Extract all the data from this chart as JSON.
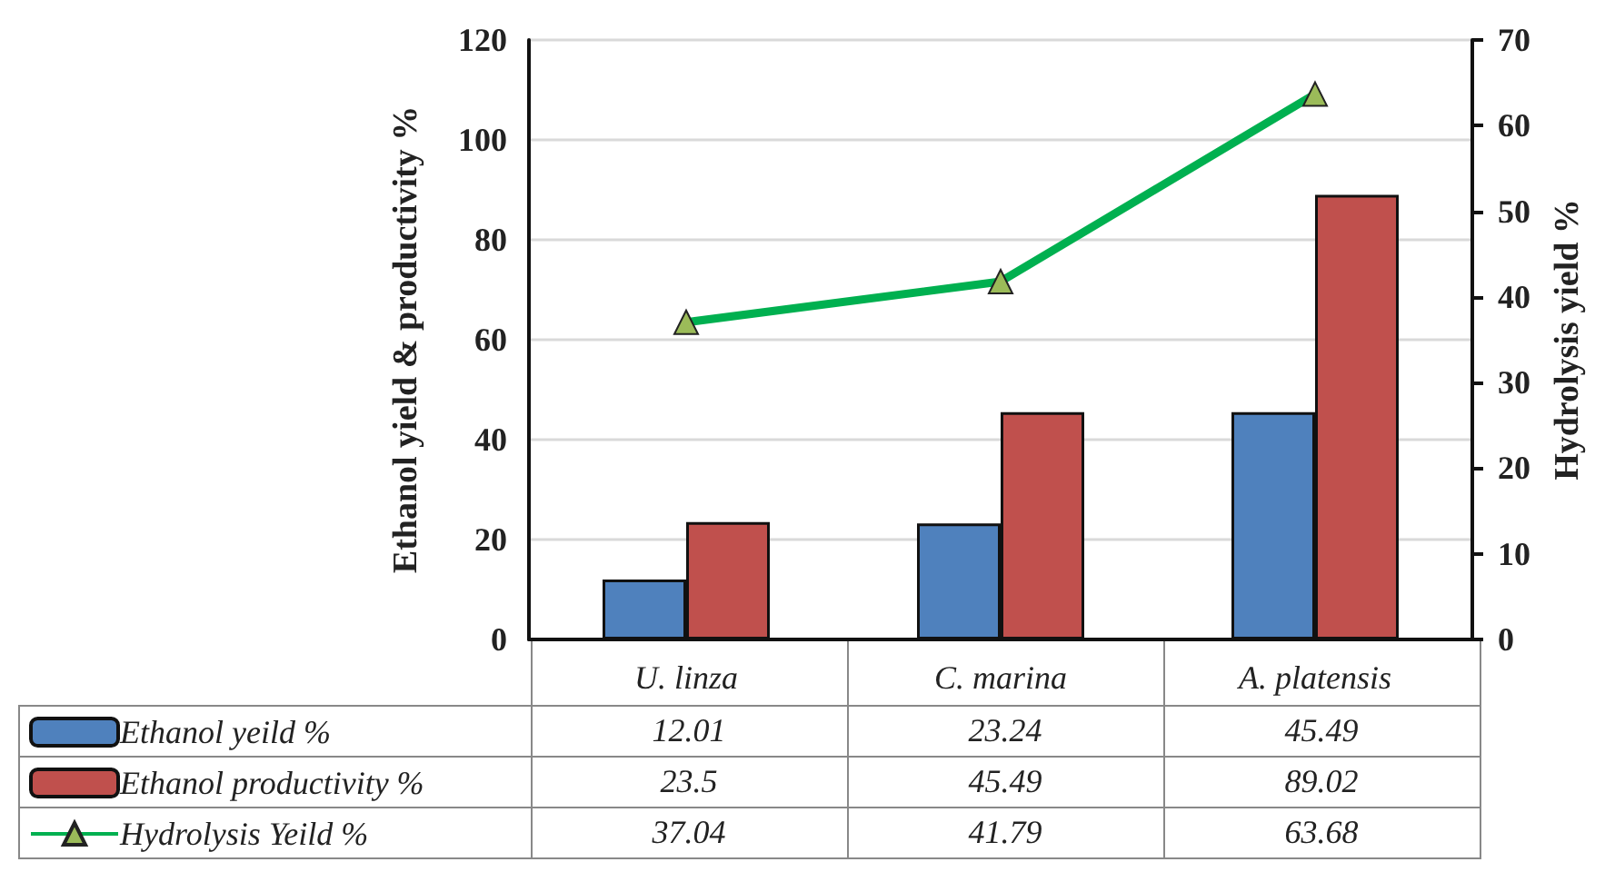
{
  "chart_data": {
    "type": "bar",
    "ylabel": "Ethanol yield & productivity %",
    "y2label": "Hydrolysis yield %",
    "categories": [
      "U. linza",
      "C. marina",
      "A. platensis"
    ],
    "series": [
      {
        "name": "Ethanol yeild %",
        "color": "#4f81bd",
        "values": [
          12.01,
          23.24,
          45.49
        ]
      },
      {
        "name": "Ethanol productivity %",
        "color": "#c0504d",
        "values": [
          23.5,
          45.49,
          89.02
        ]
      },
      {
        "name": "Hydrolysis Yeild %",
        "type": "line",
        "axis": "y2",
        "color": "#00b050",
        "marker": "triangle",
        "values": [
          37.04,
          41.79,
          63.68
        ]
      }
    ],
    "ylim": [
      0,
      120
    ],
    "yticks": [
      0,
      20,
      40,
      60,
      80,
      100,
      120
    ],
    "y2lim": [
      0,
      70
    ],
    "y2ticks": [
      0,
      10,
      20,
      30,
      40,
      50,
      60,
      70
    ],
    "grid": "y",
    "legend": "bottom left",
    "data_labels": true
  }
}
